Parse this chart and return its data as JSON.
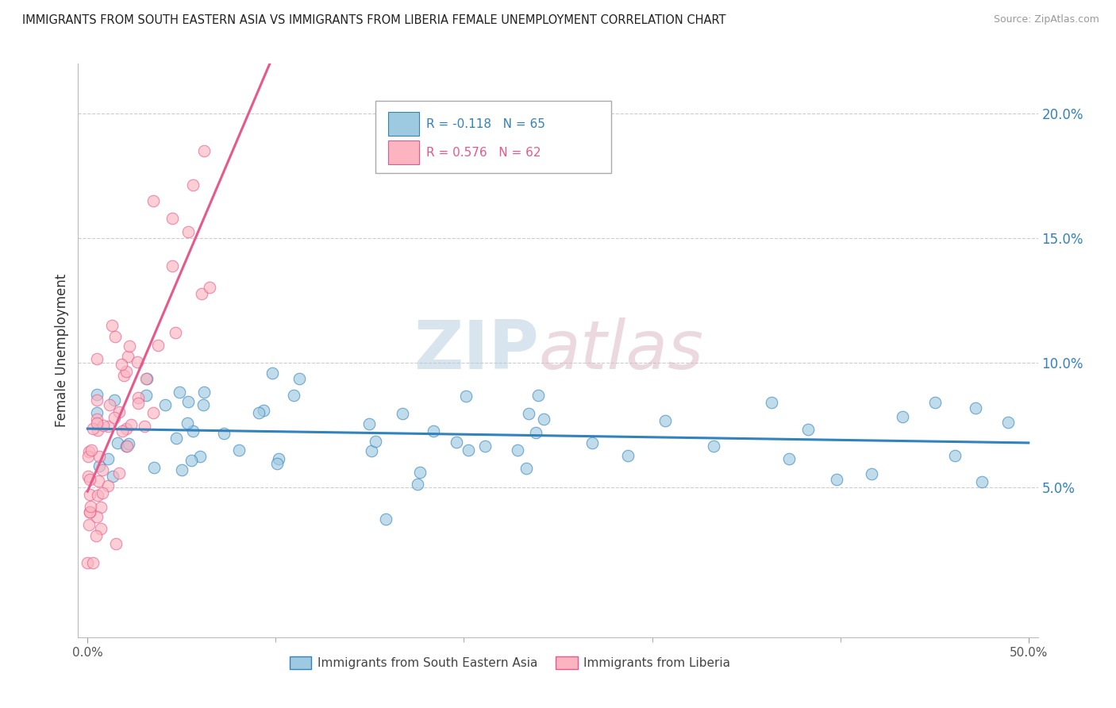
{
  "title": "IMMIGRANTS FROM SOUTH EASTERN ASIA VS IMMIGRANTS FROM LIBERIA FEMALE UNEMPLOYMENT CORRELATION CHART",
  "source": "Source: ZipAtlas.com",
  "ylabel": "Female Unemployment",
  "y_ticks": [
    0.05,
    0.1,
    0.15,
    0.2
  ],
  "y_tick_labels": [
    "5.0%",
    "10.0%",
    "15.0%",
    "20.0%"
  ],
  "xlim": [
    0.0,
    0.5
  ],
  "ylim": [
    -0.01,
    0.22
  ],
  "r_sea": -0.118,
  "n_sea": 65,
  "r_lib": 0.576,
  "n_lib": 62,
  "color_sea": "#9ecae1",
  "color_lib": "#fbb4c0",
  "trendline_color_sea": "#3182bd",
  "trendline_color_lib": "#e8588a",
  "legend_label_sea": "Immigrants from South Eastern Asia",
  "legend_label_lib": "Immigrants from Liberia",
  "sea_seed": 77,
  "lib_seed": 13
}
